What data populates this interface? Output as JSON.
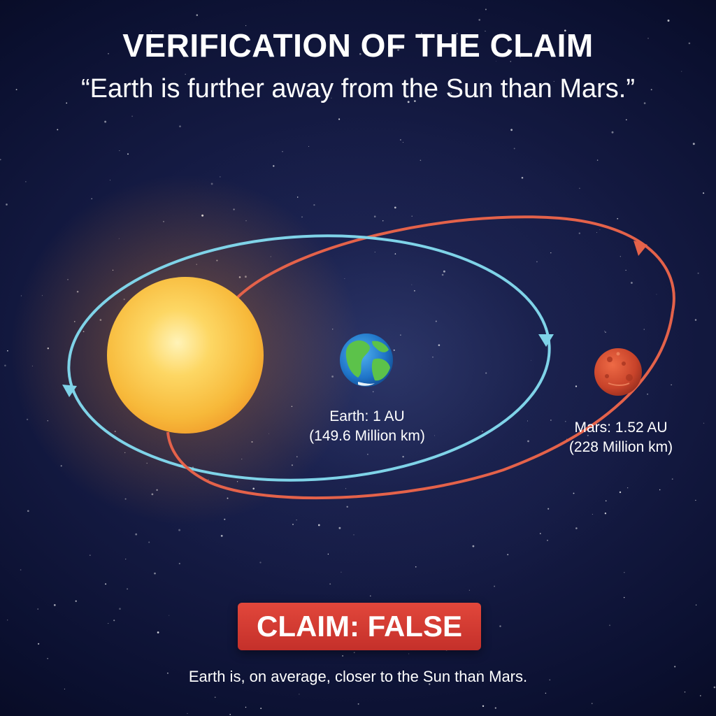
{
  "header": {
    "title": "VERIFICATION OF THE CLAIM",
    "claim": "“Earth is further away from the Sun than Mars.”"
  },
  "diagram": {
    "earth": {
      "distance_label": "Earth: 1 AU",
      "distance_km": "(149.6 Million km)",
      "orbit_color": "#7fd3e8"
    },
    "mars": {
      "distance_label": "Mars: 1.52 AU",
      "distance_km": "(228 Million km)",
      "orbit_color": "#e4624a"
    },
    "sun_color": "#f7c844"
  },
  "verdict": {
    "label": "CLAIM: FALSE",
    "color": "#d63a31"
  },
  "conclusion": "Earth is, on average, closer to the Sun than Mars."
}
